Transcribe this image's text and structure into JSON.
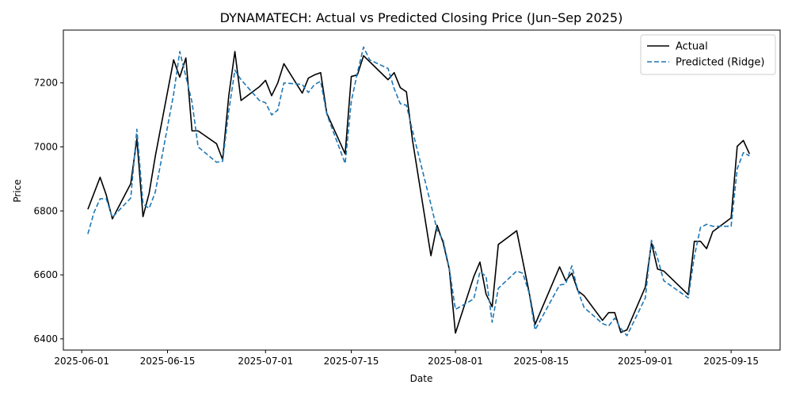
{
  "chart_data": {
    "type": "line",
    "title": "DYNAMATECH: Actual vs Predicted Closing Price (Jun–Sep 2025)",
    "xlabel": "Date",
    "ylabel": "Price",
    "xlim": [
      "2025-05-29",
      "2025-09-23"
    ],
    "ylim": [
      6365,
      7365
    ],
    "x_ticks": [
      "2025-06-01",
      "2025-06-15",
      "2025-07-01",
      "2025-07-15",
      "2025-08-01",
      "2025-08-15",
      "2025-09-01",
      "2025-09-15"
    ],
    "y_ticks": [
      6400,
      6600,
      6800,
      7000,
      7200
    ],
    "grid": false,
    "legend_position": "top-right",
    "series": [
      {
        "name": "Actual",
        "color": "#000000",
        "style": "solid",
        "points": [
          [
            "2025-06-02",
            6805
          ],
          [
            "2025-06-04",
            6905
          ],
          [
            "2025-06-05",
            6850
          ],
          [
            "2025-06-06",
            6775
          ],
          [
            "2025-06-09",
            6885
          ],
          [
            "2025-06-10",
            7025
          ],
          [
            "2025-06-11",
            6782
          ],
          [
            "2025-06-12",
            6855
          ],
          [
            "2025-06-13",
            6970
          ],
          [
            "2025-06-16",
            7272
          ],
          [
            "2025-06-17",
            7218
          ],
          [
            "2025-06-18",
            7278
          ],
          [
            "2025-06-19",
            7050
          ],
          [
            "2025-06-20",
            7050
          ],
          [
            "2025-06-23",
            7010
          ],
          [
            "2025-06-24",
            6960
          ],
          [
            "2025-06-25",
            7160
          ],
          [
            "2025-06-26",
            7298
          ],
          [
            "2025-06-27",
            7145
          ],
          [
            "2025-06-30",
            7188
          ],
          [
            "2025-07-01",
            7208
          ],
          [
            "2025-07-02",
            7160
          ],
          [
            "2025-07-03",
            7200
          ],
          [
            "2025-07-04",
            7260
          ],
          [
            "2025-07-07",
            7168
          ],
          [
            "2025-07-08",
            7215
          ],
          [
            "2025-07-09",
            7225
          ],
          [
            "2025-07-10",
            7232
          ],
          [
            "2025-07-11",
            7105
          ],
          [
            "2025-07-14",
            6978
          ],
          [
            "2025-07-15",
            7220
          ],
          [
            "2025-07-16",
            7225
          ],
          [
            "2025-07-17",
            7285
          ],
          [
            "2025-07-21",
            7210
          ],
          [
            "2025-07-22",
            7232
          ],
          [
            "2025-07-23",
            7185
          ],
          [
            "2025-07-24",
            7172
          ],
          [
            "2025-07-25",
            7020
          ],
          [
            "2025-07-28",
            6660
          ],
          [
            "2025-07-29",
            6755
          ],
          [
            "2025-07-30",
            6700
          ],
          [
            "2025-07-31",
            6618
          ],
          [
            "2025-08-01",
            6418
          ],
          [
            "2025-08-04",
            6595
          ],
          [
            "2025-08-05",
            6640
          ],
          [
            "2025-08-06",
            6540
          ],
          [
            "2025-08-07",
            6500
          ],
          [
            "2025-08-08",
            6695
          ],
          [
            "2025-08-11",
            6738
          ],
          [
            "2025-08-13",
            6548
          ],
          [
            "2025-08-14",
            6445
          ],
          [
            "2025-08-18",
            6625
          ],
          [
            "2025-08-19",
            6582
          ],
          [
            "2025-08-20",
            6605
          ],
          [
            "2025-08-21",
            6550
          ],
          [
            "2025-08-22",
            6535
          ],
          [
            "2025-08-25",
            6458
          ],
          [
            "2025-08-26",
            6482
          ],
          [
            "2025-08-27",
            6482
          ],
          [
            "2025-08-28",
            6420
          ],
          [
            "2025-08-29",
            6428
          ],
          [
            "2025-09-01",
            6562
          ],
          [
            "2025-09-02",
            6700
          ],
          [
            "2025-09-03",
            6618
          ],
          [
            "2025-09-04",
            6612
          ],
          [
            "2025-09-08",
            6538
          ],
          [
            "2025-09-09",
            6705
          ],
          [
            "2025-09-10",
            6705
          ],
          [
            "2025-09-11",
            6682
          ],
          [
            "2025-09-12",
            6735
          ],
          [
            "2025-09-15",
            6778
          ],
          [
            "2025-09-16",
            7002
          ],
          [
            "2025-09-17",
            7020
          ],
          [
            "2025-09-18",
            6978
          ]
        ]
      },
      {
        "name": "Predicted (Ridge)",
        "color": "#1f77b4",
        "style": "dashed",
        "points": [
          [
            "2025-06-02",
            6728
          ],
          [
            "2025-06-03",
            6795
          ],
          [
            "2025-06-04",
            6838
          ],
          [
            "2025-06-05",
            6838
          ],
          [
            "2025-06-06",
            6780
          ],
          [
            "2025-06-09",
            6840
          ],
          [
            "2025-06-10",
            7055
          ],
          [
            "2025-06-11",
            6822
          ],
          [
            "2025-06-12",
            6808
          ],
          [
            "2025-06-13",
            6858
          ],
          [
            "2025-06-16",
            7165
          ],
          [
            "2025-06-17",
            7298
          ],
          [
            "2025-06-18",
            7220
          ],
          [
            "2025-06-19",
            7140
          ],
          [
            "2025-06-20",
            7000
          ],
          [
            "2025-06-23",
            6952
          ],
          [
            "2025-06-24",
            6955
          ],
          [
            "2025-06-25",
            7112
          ],
          [
            "2025-06-26",
            7240
          ],
          [
            "2025-06-27",
            7210
          ],
          [
            "2025-06-30",
            7145
          ],
          [
            "2025-07-01",
            7138
          ],
          [
            "2025-07-02",
            7100
          ],
          [
            "2025-07-03",
            7115
          ],
          [
            "2025-07-04",
            7200
          ],
          [
            "2025-07-07",
            7195
          ],
          [
            "2025-07-08",
            7170
          ],
          [
            "2025-07-09",
            7195
          ],
          [
            "2025-07-10",
            7205
          ],
          [
            "2025-07-11",
            7102
          ],
          [
            "2025-07-14",
            6948
          ],
          [
            "2025-07-15",
            7142
          ],
          [
            "2025-07-16",
            7232
          ],
          [
            "2025-07-17",
            7312
          ],
          [
            "2025-07-18",
            7272
          ],
          [
            "2025-07-21",
            7245
          ],
          [
            "2025-07-22",
            7182
          ],
          [
            "2025-07-23",
            7135
          ],
          [
            "2025-07-24",
            7130
          ],
          [
            "2025-07-25",
            7050
          ],
          [
            "2025-07-28",
            6820
          ],
          [
            "2025-07-29",
            6740
          ],
          [
            "2025-07-30",
            6708
          ],
          [
            "2025-07-31",
            6620
          ],
          [
            "2025-08-01",
            6492
          ],
          [
            "2025-08-04",
            6525
          ],
          [
            "2025-08-05",
            6610
          ],
          [
            "2025-08-06",
            6595
          ],
          [
            "2025-08-07",
            6452
          ],
          [
            "2025-08-08",
            6558
          ],
          [
            "2025-08-11",
            6612
          ],
          [
            "2025-08-12",
            6605
          ],
          [
            "2025-08-13",
            6545
          ],
          [
            "2025-08-14",
            6428
          ],
          [
            "2025-08-18",
            6568
          ],
          [
            "2025-08-19",
            6572
          ],
          [
            "2025-08-20",
            6628
          ],
          [
            "2025-08-21",
            6550
          ],
          [
            "2025-08-22",
            6498
          ],
          [
            "2025-08-25",
            6448
          ],
          [
            "2025-08-26",
            6440
          ],
          [
            "2025-08-27",
            6465
          ],
          [
            "2025-08-28",
            6432
          ],
          [
            "2025-08-29",
            6410
          ],
          [
            "2025-09-01",
            6528
          ],
          [
            "2025-09-02",
            6708
          ],
          [
            "2025-09-03",
            6652
          ],
          [
            "2025-09-04",
            6582
          ],
          [
            "2025-09-08",
            6528
          ],
          [
            "2025-09-09",
            6658
          ],
          [
            "2025-09-10",
            6748
          ],
          [
            "2025-09-11",
            6758
          ],
          [
            "2025-09-12",
            6752
          ],
          [
            "2025-09-15",
            6752
          ],
          [
            "2025-09-16",
            6932
          ],
          [
            "2025-09-17",
            6982
          ],
          [
            "2025-09-18",
            6972
          ]
        ]
      }
    ]
  }
}
